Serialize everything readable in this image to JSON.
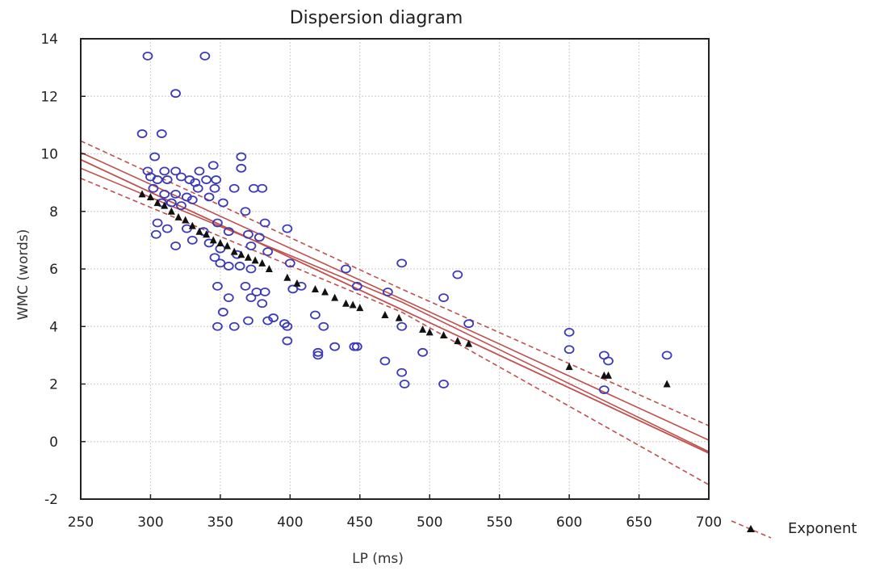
{
  "chart_data": {
    "type": "scatter",
    "title": "Dispersion diagram",
    "xlabel": "LP (ms)",
    "ylabel": "WMC (words)",
    "xlim": [
      250,
      700
    ],
    "ylim": [
      -2,
      14
    ],
    "x_ticks": [
      250,
      300,
      350,
      400,
      450,
      500,
      550,
      600,
      650,
      700
    ],
    "y_ticks": [
      -2,
      0,
      2,
      4,
      6,
      8,
      10,
      12,
      14
    ],
    "grid": true,
    "legend_position": "bottom-right",
    "colors": {
      "observed": "#3b3bb8",
      "fitted": "#111111",
      "regression": "#c0504d",
      "grid": "#d4d4d4",
      "frame": "#222222"
    },
    "series": [
      {
        "marker": "open-circle",
        "points": [
          [
            298,
            13.4
          ],
          [
            339,
            13.4
          ],
          [
            318,
            12.1
          ],
          [
            294,
            10.7
          ],
          [
            308,
            10.7
          ],
          [
            303,
            9.9
          ],
          [
            365,
            9.9
          ],
          [
            298,
            9.4
          ],
          [
            310,
            9.4
          ],
          [
            318,
            9.4
          ],
          [
            335,
            9.4
          ],
          [
            345,
            9.6
          ],
          [
            365,
            9.5
          ],
          [
            300,
            9.2
          ],
          [
            305,
            9.1
          ],
          [
            312,
            9.1
          ],
          [
            322,
            9.2
          ],
          [
            328,
            9.1
          ],
          [
            332,
            9.0
          ],
          [
            340,
            9.1
          ],
          [
            347,
            9.1
          ],
          [
            302,
            8.8
          ],
          [
            310,
            8.6
          ],
          [
            318,
            8.6
          ],
          [
            326,
            8.5
          ],
          [
            334,
            8.8
          ],
          [
            346,
            8.8
          ],
          [
            360,
            8.8
          ],
          [
            374,
            8.8
          ],
          [
            380,
            8.8
          ],
          [
            308,
            8.3
          ],
          [
            315,
            8.3
          ],
          [
            322,
            8.2
          ],
          [
            330,
            8.4
          ],
          [
            342,
            8.5
          ],
          [
            352,
            8.3
          ],
          [
            368,
            8.0
          ],
          [
            382,
            7.6
          ],
          [
            305,
            7.6
          ],
          [
            312,
            7.4
          ],
          [
            326,
            7.4
          ],
          [
            338,
            7.3
          ],
          [
            348,
            7.6
          ],
          [
            356,
            7.3
          ],
          [
            370,
            7.2
          ],
          [
            378,
            7.1
          ],
          [
            398,
            7.4
          ],
          [
            304,
            7.2
          ],
          [
            318,
            6.8
          ],
          [
            330,
            7.0
          ],
          [
            342,
            6.9
          ],
          [
            350,
            6.7
          ],
          [
            362,
            6.5
          ],
          [
            372,
            6.8
          ],
          [
            384,
            6.6
          ],
          [
            346,
            6.4
          ],
          [
            350,
            6.2
          ],
          [
            356,
            6.1
          ],
          [
            364,
            6.1
          ],
          [
            372,
            6.0
          ],
          [
            400,
            6.2
          ],
          [
            440,
            6.0
          ],
          [
            480,
            6.2
          ],
          [
            520,
            5.8
          ],
          [
            348,
            5.4
          ],
          [
            368,
            5.4
          ],
          [
            376,
            5.2
          ],
          [
            382,
            5.2
          ],
          [
            402,
            5.3
          ],
          [
            408,
            5.4
          ],
          [
            448,
            5.4
          ],
          [
            470,
            5.2
          ],
          [
            510,
            5.0
          ],
          [
            356,
            5.0
          ],
          [
            372,
            5.0
          ],
          [
            380,
            4.8
          ],
          [
            352,
            4.5
          ],
          [
            370,
            4.2
          ],
          [
            384,
            4.2
          ],
          [
            388,
            4.3
          ],
          [
            396,
            4.1
          ],
          [
            418,
            4.4
          ],
          [
            432,
            3.3
          ],
          [
            446,
            3.3
          ],
          [
            468,
            2.8
          ],
          [
            348,
            4.0
          ],
          [
            360,
            4.0
          ],
          [
            398,
            4.0
          ],
          [
            424,
            4.0
          ],
          [
            480,
            4.0
          ],
          [
            528,
            4.1
          ],
          [
            398,
            3.5
          ],
          [
            420,
            3.1
          ],
          [
            448,
            3.3
          ],
          [
            495,
            3.1
          ],
          [
            600,
            3.8
          ],
          [
            420,
            3.0
          ],
          [
            600,
            3.2
          ],
          [
            625,
            3.0
          ],
          [
            628,
            2.8
          ],
          [
            670,
            3.0
          ],
          [
            480,
            2.4
          ],
          [
            482,
            2.0
          ],
          [
            510,
            2.0
          ],
          [
            625,
            1.8
          ]
        ]
      },
      {
        "name": "Exponent",
        "marker": "filled-triangle",
        "points": [
          [
            294,
            8.6
          ],
          [
            300,
            8.5
          ],
          [
            305,
            8.3
          ],
          [
            310,
            8.2
          ],
          [
            315,
            8.0
          ],
          [
            320,
            7.8
          ],
          [
            325,
            7.7
          ],
          [
            330,
            7.5
          ],
          [
            335,
            7.3
          ],
          [
            340,
            7.2
          ],
          [
            345,
            7.0
          ],
          [
            350,
            6.9
          ],
          [
            355,
            6.8
          ],
          [
            360,
            6.6
          ],
          [
            365,
            6.5
          ],
          [
            370,
            6.4
          ],
          [
            375,
            6.3
          ],
          [
            380,
            6.2
          ],
          [
            385,
            6.0
          ],
          [
            398,
            5.7
          ],
          [
            405,
            5.5
          ],
          [
            418,
            5.3
          ],
          [
            425,
            5.2
          ],
          [
            432,
            5.0
          ],
          [
            440,
            4.8
          ],
          [
            445,
            4.75
          ],
          [
            450,
            4.65
          ],
          [
            468,
            4.4
          ],
          [
            478,
            4.3
          ],
          [
            495,
            3.9
          ],
          [
            500,
            3.8
          ],
          [
            510,
            3.7
          ],
          [
            520,
            3.5
          ],
          [
            528,
            3.4
          ],
          [
            600,
            2.6
          ],
          [
            625,
            2.3
          ],
          [
            628,
            2.3
          ],
          [
            670,
            2.0
          ]
        ]
      }
    ],
    "regression": {
      "fit": {
        "x": [
          250,
          700
        ],
        "y": [
          9.8,
          -0.4
        ],
        "style": "solid"
      },
      "bands": [
        {
          "x": [
            250,
            480,
            700
          ],
          "y": [
            10.45,
            5.3,
            0.55
          ],
          "style": "dashed"
        },
        {
          "x": [
            250,
            480,
            700
          ],
          "y": [
            9.15,
            4.5,
            -1.5
          ],
          "style": "dashed"
        },
        {
          "x": [
            250,
            480,
            700
          ],
          "y": [
            10.05,
            4.95,
            0.05
          ],
          "style": "solid"
        },
        {
          "x": [
            250,
            480,
            700
          ],
          "y": [
            9.5,
            4.85,
            -0.35
          ],
          "style": "solid"
        }
      ]
    }
  }
}
